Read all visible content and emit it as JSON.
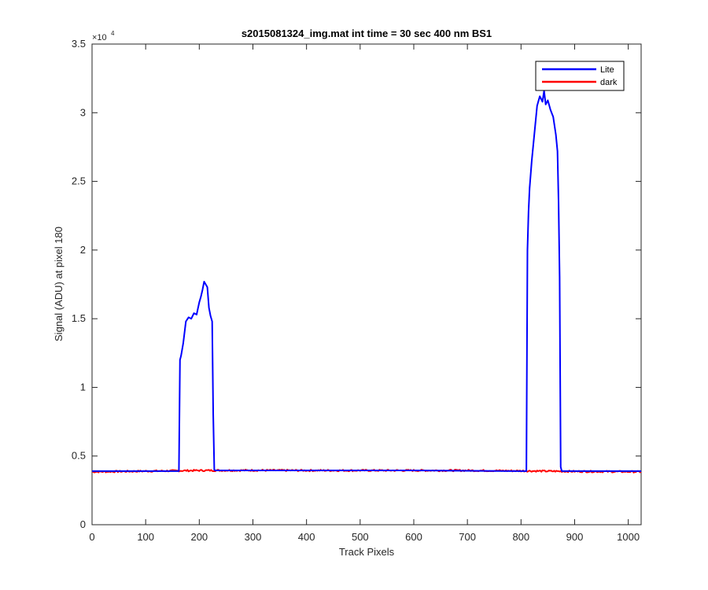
{
  "chart_data": {
    "type": "line",
    "title": "s2015081324_img.mat int time = 30 sec  400 nm BS1",
    "xlabel": "Track Pixels",
    "ylabel": "Signal (ADU) at pixel 180",
    "xlim": [
      0,
      1024
    ],
    "ylim": [
      0,
      35000
    ],
    "y_exponent_label": "×10",
    "y_exponent_power": "4",
    "x_ticks": [
      0,
      100,
      200,
      300,
      400,
      500,
      600,
      700,
      800,
      900,
      1000
    ],
    "x_tick_labels": [
      "0",
      "100",
      "200",
      "300",
      "400",
      "500",
      "600",
      "700",
      "800",
      "900",
      "1000"
    ],
    "y_ticks": [
      0,
      5000,
      10000,
      15000,
      20000,
      25000,
      30000,
      35000
    ],
    "y_tick_labels": [
      "0",
      "0.5",
      "1",
      "1.5",
      "2",
      "2.5",
      "3",
      "3.5"
    ],
    "legend_position": "top-right",
    "grid": false,
    "series": [
      {
        "name": "Lite",
        "color": "#0000ff",
        "x": [
          0,
          162,
          164,
          166,
          170,
          175,
          180,
          185,
          190,
          195,
          200,
          203,
          206,
          209,
          212,
          215,
          218,
          221,
          224,
          226,
          228,
          230,
          400,
          600,
          800,
          810,
          812,
          814,
          816,
          820,
          825,
          830,
          835,
          840,
          843,
          846,
          850,
          855,
          860,
          865,
          868,
          870,
          872,
          874,
          876,
          880,
          1024
        ],
        "y": [
          3900,
          3900,
          12000,
          12300,
          13200,
          14800,
          15100,
          15000,
          15400,
          15300,
          16200,
          16600,
          17100,
          17700,
          17500,
          17300,
          15800,
          15200,
          14800,
          8000,
          4000,
          3950,
          3950,
          3950,
          3900,
          3900,
          20000,
          22800,
          24500,
          26500,
          28500,
          30500,
          31200,
          30800,
          31600,
          30600,
          30900,
          30200,
          29700,
          28400,
          27200,
          23500,
          18000,
          4200,
          3900,
          3900,
          3900
        ]
      },
      {
        "name": "dark",
        "color": "#ff0000",
        "x": [
          0,
          100,
          200,
          300,
          400,
          500,
          600,
          700,
          800,
          900,
          1000,
          1024
        ],
        "y": [
          3850,
          3900,
          3950,
          3960,
          3950,
          3950,
          3950,
          3950,
          3920,
          3880,
          3860,
          3850
        ]
      }
    ]
  }
}
